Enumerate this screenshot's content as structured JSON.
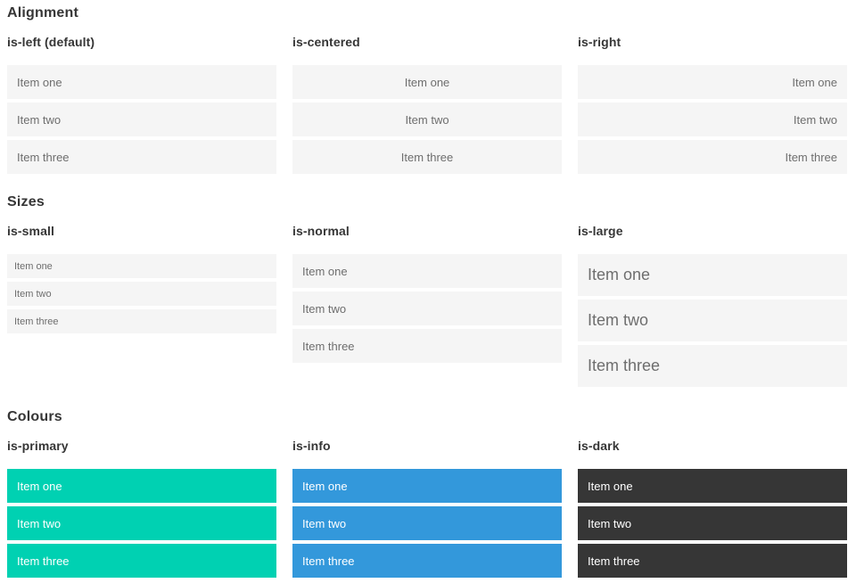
{
  "sections": [
    {
      "title": "Alignment",
      "columns": [
        {
          "heading": "is-left (default)",
          "items": [
            "Item one",
            "Item two",
            "Item three"
          ]
        },
        {
          "heading": "is-centered",
          "items": [
            "Item one",
            "Item two",
            "Item three"
          ]
        },
        {
          "heading": "is-right",
          "items": [
            "Item one",
            "Item two",
            "Item three"
          ]
        }
      ]
    },
    {
      "title": "Sizes",
      "columns": [
        {
          "heading": "is-small",
          "items": [
            "Item one",
            "Item two",
            "Item three"
          ]
        },
        {
          "heading": "is-normal",
          "items": [
            "Item one",
            "Item two",
            "Item three"
          ]
        },
        {
          "heading": "is-large",
          "items": [
            "Item one",
            "Item two",
            "Item three"
          ]
        }
      ]
    },
    {
      "title": "Colours",
      "columns": [
        {
          "heading": "is-primary",
          "items": [
            "Item one",
            "Item two",
            "Item three"
          ]
        },
        {
          "heading": "is-info",
          "items": [
            "Item one",
            "Item two",
            "Item three"
          ]
        },
        {
          "heading": "is-dark",
          "items": [
            "Item one",
            "Item two",
            "Item three"
          ]
        }
      ]
    }
  ],
  "colors": {
    "primary": "#00d1b2",
    "info": "#3398db",
    "dark": "#363636",
    "item_background": "#f5f5f5",
    "item_text": "#6e6e6e",
    "heading_text": "#363636",
    "colored_item_text": "#ffffff"
  }
}
